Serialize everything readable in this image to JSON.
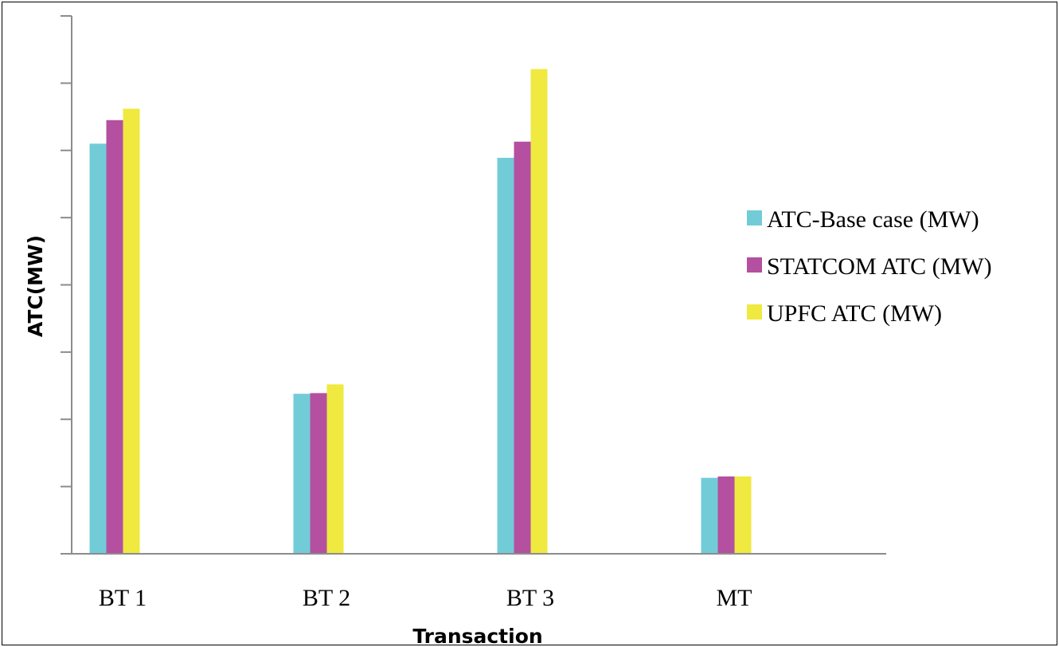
{
  "chart_data": {
    "type": "bar",
    "title": "",
    "xlabel": "Transaction",
    "ylabel": "ATC(MW)",
    "categories": [
      "BT 1",
      "BT 2",
      "BT 3",
      "MT"
    ],
    "series": [
      {
        "name": "ATC-Base case (MW)",
        "color": "#72ccd8",
        "values": [
          610,
          238,
          589,
          113
        ]
      },
      {
        "name": "STATCOM ATC (MW)",
        "color": "#b4509f",
        "values": [
          645,
          239,
          613,
          115
        ]
      },
      {
        "name": "UPFC ATC (MW)",
        "color": "#efe940",
        "values": [
          662,
          252,
          721,
          115
        ]
      }
    ],
    "ylim": [
      0,
      800
    ],
    "y_tick_step": 100,
    "y_tick_labels_shown": false,
    "grid": false,
    "legend_position": "right"
  }
}
